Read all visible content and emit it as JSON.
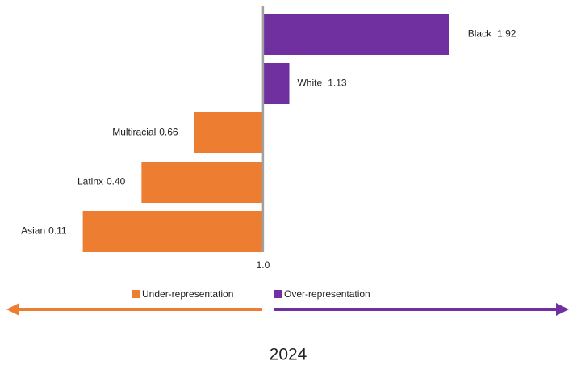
{
  "chart_data": {
    "type": "diverging-bar",
    "title": "2024",
    "categories": [
      "Black",
      "White",
      "Multiracial",
      "Latinx",
      "Asian"
    ],
    "series": [
      {
        "name": "Under-representation",
        "color": "#ed7d31",
        "values": [
          null,
          null,
          0.66,
          0.4,
          0.11
        ],
        "value_labels": [
          null,
          null,
          "0.66",
          "0.40",
          "0.11"
        ]
      },
      {
        "name": "Over-representation",
        "color": "#7030a0",
        "values": [
          1.92,
          1.13,
          null,
          null,
          null
        ],
        "value_labels": [
          "1.92",
          "1.13",
          null,
          null,
          null
        ]
      }
    ],
    "xlim": [
      0,
      2.2
    ],
    "xticks": [
      {
        "value": 1,
        "label": "1.0"
      }
    ]
  }
}
